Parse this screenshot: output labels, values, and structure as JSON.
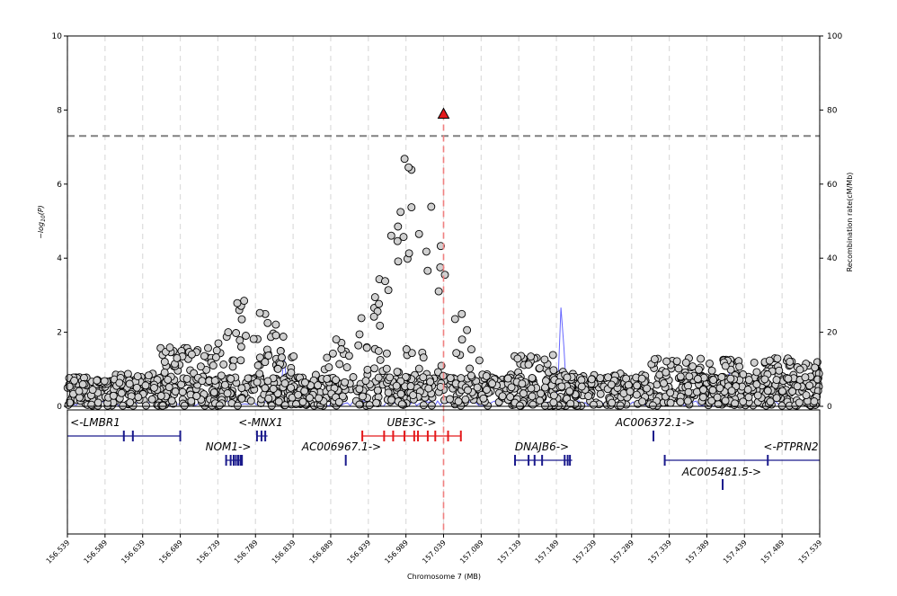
{
  "chart_data": {
    "type": "scatter",
    "subtype": "regional-association-plot",
    "xlabel": "Chromosome 7 (MB)",
    "ylabel_left": "-log10(P)",
    "ylabel_right": "Recombination rate(cM/Mb)",
    "xlim": [
      156.539,
      157.539
    ],
    "ylim_left": [
      0,
      10
    ],
    "ylim_right": [
      0,
      100
    ],
    "x_ticks": [
      "156.539",
      "156.589",
      "156.639",
      "156.689",
      "156.739",
      "156.789",
      "156.839",
      "156.889",
      "156.939",
      "156.989",
      "157.039",
      "157.089",
      "157.139",
      "157.189",
      "157.239",
      "157.289",
      "157.339",
      "157.389",
      "157.439",
      "157.489",
      "157.539"
    ],
    "y_ticks_left": [
      "0",
      "2",
      "4",
      "6",
      "8",
      "10"
    ],
    "y_ticks_right": [
      "0",
      "20",
      "40",
      "60",
      "80",
      "100"
    ],
    "significance_line": 7.3,
    "lead_variant": {
      "x": 157.039,
      "y": 7.9
    },
    "colors": {
      "points": "#d0d0d0",
      "lead": "#e41a1c",
      "recomb": "#3333ff",
      "gene": "#1a1a8c",
      "lead_gene": "#e41a1c",
      "grid": "#dcdcdc"
    },
    "recombination_peaks": [
      {
        "x": 156.827,
        "y": 14
      },
      {
        "x": 157.196,
        "y": 32
      },
      {
        "x": 157.418,
        "y": 11
      }
    ],
    "gene_labels": {
      "lmbr1": "<-LMBR1",
      "mnx1": "<-MNX1",
      "ube3c": "UBE3C->",
      "ac006372": "AC006372.1->",
      "nom1": "NOM1->",
      "ac006967": "AC006967.1->",
      "dnajb6": "DNAJB6->",
      "ptprn2": "<-PTPRN2",
      "ac005481": "AC005481.5->"
    },
    "genes": [
      {
        "key": "lmbr1",
        "start": 156.539,
        "end": 156.69,
        "row": 0,
        "strand": "-",
        "exons": [
          156.614,
          156.626,
          156.689
        ],
        "lead": false
      },
      {
        "key": "mnx1",
        "start": 156.79,
        "end": 156.805,
        "row": 0,
        "strand": "-",
        "exons": [
          156.791,
          156.797,
          156.802
        ],
        "lead": false
      },
      {
        "key": "ube3c",
        "start": 156.93,
        "end": 157.063,
        "row": 0,
        "strand": "+",
        "exons": [
          156.931,
          156.96,
          156.972,
          156.987,
          157.0,
          157.005,
          157.018,
          157.028,
          157.045,
          157.062
        ],
        "lead": true
      },
      {
        "key": "ac006372",
        "start": 157.318,
        "end": 157.318,
        "row": 0,
        "strand": "+",
        "exons": [
          157.318
        ],
        "lead": false
      },
      {
        "key": "nom1",
        "start": 156.749,
        "end": 156.772,
        "row": 1,
        "strand": "+",
        "exons": [
          156.75,
          156.756,
          156.76,
          156.763,
          156.766,
          156.769,
          156.771
        ],
        "lead": false
      },
      {
        "key": "ac006967",
        "start": 156.909,
        "end": 156.909,
        "row": 1,
        "strand": "+",
        "exons": [
          156.909
        ],
        "lead": false
      },
      {
        "key": "dnajb6",
        "start": 157.133,
        "end": 157.21,
        "row": 1,
        "strand": "+",
        "exons": [
          157.134,
          157.152,
          157.16,
          157.17,
          157.2,
          157.204,
          157.207
        ],
        "lead": false
      },
      {
        "key": "ptprn2",
        "start": 157.332,
        "end": 157.539,
        "row": 1,
        "strand": "-",
        "exons": [
          157.333,
          157.47
        ],
        "lead": false
      },
      {
        "key": "ac005481",
        "start": 157.41,
        "end": 157.41,
        "row": 2,
        "strand": "+",
        "exons": [
          157.41
        ],
        "lead": false
      }
    ]
  }
}
